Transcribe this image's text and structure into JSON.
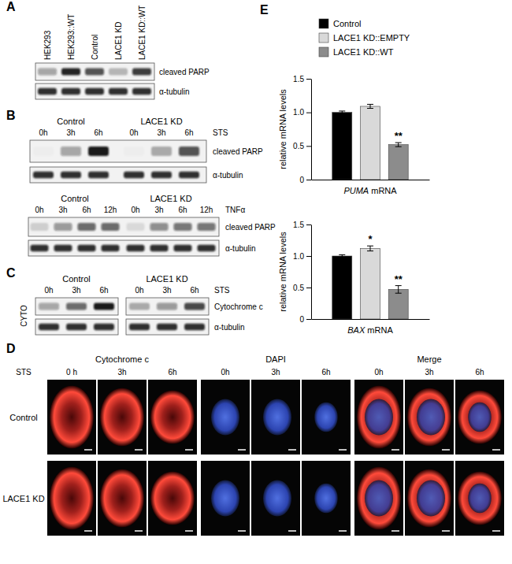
{
  "panels": {
    "A": {
      "label": "A",
      "lanes": [
        "HEK293",
        "HEK293::WT",
        "Control",
        "LACE1 KD",
        "LACE1 KD::WT"
      ],
      "rows": [
        {
          "label": "cleaved PARP",
          "bands": [
            0.35,
            0.9,
            0.7,
            0.25,
            0.8
          ]
        },
        {
          "label": "α-tubulin",
          "bands": [
            0.85,
            0.85,
            0.85,
            0.85,
            0.85
          ]
        }
      ]
    },
    "B": {
      "label": "B",
      "blots": [
        {
          "groups": [
            "Control",
            "LACE1 KD"
          ],
          "times": [
            "0h",
            "3h",
            "6h"
          ],
          "treatment": "STS",
          "rows": [
            {
              "label": "cleaved PARP",
              "bands": [
                0.02,
                0.35,
                0.95,
                0.02,
                0.3,
                0.7
              ]
            },
            {
              "label": "α-tubulin",
              "bands": [
                0.85,
                0.85,
                0.85,
                0.85,
                0.85,
                0.85
              ]
            }
          ]
        },
        {
          "groups": [
            "Control",
            "LACE1 KD"
          ],
          "times": [
            "0h",
            "3h",
            "6h",
            "12h"
          ],
          "treatment": "TNFα",
          "rows": [
            {
              "label": "cleaved PARP",
              "bands": [
                0.15,
                0.4,
                0.6,
                0.6,
                0.1,
                0.45,
                0.55,
                0.55
              ]
            },
            {
              "label": "α-tubulin",
              "bands": [
                0.85,
                0.85,
                0.85,
                0.85,
                0.85,
                0.85,
                0.85,
                0.85
              ]
            }
          ]
        }
      ]
    },
    "C": {
      "label": "C",
      "fraction": "CYTO",
      "groups": [
        "Control",
        "LACE1 KD"
      ],
      "times": [
        "0h",
        "3h",
        "6h"
      ],
      "treatment": "STS",
      "rows": [
        {
          "label": "Cytochrome c",
          "bands": [
            0.35,
            0.6,
            0.95,
            0.3,
            0.4,
            0.75
          ]
        },
        {
          "label": "α-tubulin",
          "bands": [
            0.85,
            0.85,
            0.85,
            0.85,
            0.85,
            0.85
          ]
        }
      ]
    },
    "D": {
      "label": "D",
      "treatment": "STS",
      "channels": [
        {
          "name": "Cytochrome c",
          "times": [
            "0 h",
            "3h",
            "6h"
          ]
        },
        {
          "name": "DAPI",
          "times": [
            "0h",
            "3h",
            "6h"
          ]
        },
        {
          "name": "Merge",
          "times": [
            "0h",
            "3h",
            "6h"
          ]
        }
      ],
      "rows": [
        "Control",
        "LACE1 KD"
      ]
    },
    "E": {
      "label": "E"
    }
  },
  "chart_data": [
    {
      "type": "bar",
      "categories": [
        "PUMA mRNA"
      ],
      "y_label": "relative mRNA levels",
      "ylim": [
        0,
        1.5
      ],
      "yticks": [
        0,
        0.5,
        {
          "value": 1,
          "label": "1.0"
        },
        1.5
      ],
      "legend": "top",
      "series": [
        {
          "name": "Control",
          "color": "#000000",
          "values": [
            1.0
          ],
          "errors": [
            0.02
          ]
        },
        {
          "name": "LACE1 KD::EMPTY",
          "color": "#d9d9d9",
          "values": [
            1.09
          ],
          "errors": [
            0.03
          ]
        },
        {
          "name": "LACE1 KD::WT",
          "color": "#8c8c8c",
          "values": [
            0.52
          ],
          "errors": [
            0.03
          ],
          "significance": "**"
        }
      ]
    },
    {
      "type": "bar",
      "categories": [
        "BAX mRNA"
      ],
      "y_label": "relative mRNA levels",
      "ylim": [
        0,
        1.5
      ],
      "yticks": [
        0,
        0.5,
        {
          "value": 1,
          "label": "1.0"
        },
        1.5
      ],
      "series": [
        {
          "color": "#000000",
          "values": [
            1.0
          ],
          "errors": [
            0.02
          ]
        },
        {
          "color": "#d9d9d9",
          "values": [
            1.12
          ],
          "errors": [
            0.04
          ],
          "significance": "*"
        },
        {
          "color": "#8c8c8c",
          "values": [
            0.47
          ],
          "errors": [
            0.06
          ],
          "significance": "**"
        }
      ]
    }
  ]
}
